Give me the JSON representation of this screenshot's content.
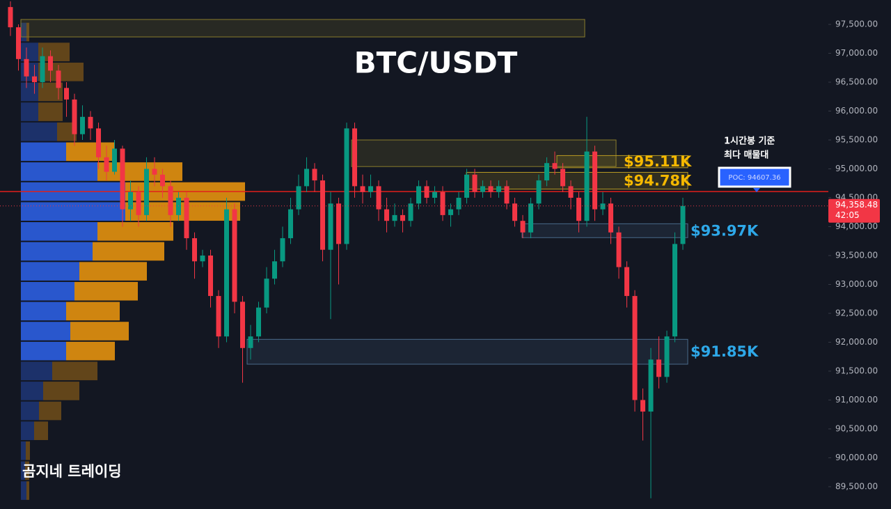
{
  "chart_data": {
    "type": "candlestick",
    "title": "BTC/USDT",
    "watermark": "곰지네 트레이딩",
    "up_color": "#089981",
    "down_color": "#f23645",
    "grid": false,
    "ylim": [
      89114,
      97922
    ],
    "yticks": [
      {
        "value": 89500,
        "label": "89,500.00"
      },
      {
        "value": 90000,
        "label": "90,000.00"
      },
      {
        "value": 90500,
        "label": "90,500.00"
      },
      {
        "value": 91000,
        "label": "91,000.00"
      },
      {
        "value": 91500,
        "label": "91,500.00"
      },
      {
        "value": 92000,
        "label": "92,000.00"
      },
      {
        "value": 92500,
        "label": "92,500.00"
      },
      {
        "value": 93000,
        "label": "93,000.00"
      },
      {
        "value": 93500,
        "label": "93,500.00"
      },
      {
        "value": 94000,
        "label": "94,000.00"
      },
      {
        "value": 94500,
        "label": "94,500.00"
      },
      {
        "value": 95000,
        "label": "95,000.00"
      },
      {
        "value": 95500,
        "label": "95,500.00"
      },
      {
        "value": 96000,
        "label": "96,000.00"
      },
      {
        "value": 96500,
        "label": "96,500.00"
      },
      {
        "value": 97000,
        "label": "97,000.00"
      },
      {
        "value": 97500,
        "label": "97,500.00"
      }
    ],
    "open": [
      97800,
      97450,
      96900,
      96600,
      96500,
      96950,
      96700,
      96400,
      96200,
      95600,
      95900,
      95700,
      95200,
      94950,
      95350,
      94300,
      94600,
      94200,
      95000,
      94900,
      94700,
      94200,
      94500,
      93800,
      93400,
      93500,
      92800,
      92100,
      94300,
      92700,
      91900,
      92100,
      92600,
      93100,
      93400,
      93800,
      94300,
      94700,
      95000,
      94800,
      93600,
      94400,
      93700,
      95700,
      94700,
      94600,
      94700,
      94300,
      94100,
      94200,
      94100,
      94400,
      94700,
      94500,
      94600,
      94200,
      94300,
      94500,
      94900,
      94600,
      94700,
      94600,
      94700,
      94400,
      94100,
      93900,
      94400,
      94800,
      95100,
      95000,
      94700,
      94500,
      94100,
      95300,
      94300,
      94400,
      93900,
      93300,
      92800,
      91000,
      90800,
      91700,
      91400,
      92100,
      93700
    ],
    "high": [
      97900,
      97500,
      97100,
      96800,
      97100,
      97050,
      96800,
      96500,
      96300,
      96100,
      96000,
      95800,
      95400,
      95500,
      95400,
      94800,
      94700,
      95200,
      95200,
      95000,
      94800,
      94600,
      94600,
      93900,
      93600,
      93600,
      92900,
      94500,
      94400,
      92800,
      92300,
      92700,
      93300,
      93600,
      94000,
      94500,
      94900,
      95200,
      95100,
      94900,
      94600,
      94500,
      95800,
      95800,
      94900,
      94900,
      94800,
      94500,
      94400,
      94300,
      94500,
      94800,
      94800,
      94700,
      94700,
      94400,
      94600,
      95000,
      95000,
      94800,
      94800,
      94800,
      94800,
      94500,
      94200,
      94500,
      94900,
      95200,
      95300,
      95100,
      94800,
      94600,
      95900,
      95400,
      94600,
      94500,
      94000,
      93400,
      92900,
      91200,
      91900,
      92100,
      92200,
      93900,
      94500
    ],
    "low": [
      97300,
      96700,
      96400,
      96300,
      96400,
      96500,
      96200,
      95900,
      95400,
      95500,
      95500,
      95000,
      94800,
      94900,
      94000,
      94100,
      94000,
      94100,
      94700,
      94500,
      94000,
      94100,
      93600,
      93100,
      93300,
      92600,
      91900,
      92000,
      92500,
      91300,
      91700,
      92000,
      92500,
      93000,
      93300,
      93700,
      94200,
      94600,
      94600,
      93400,
      92400,
      93000,
      93600,
      94500,
      94400,
      94500,
      94100,
      93900,
      94000,
      93900,
      94000,
      94300,
      94400,
      94400,
      94100,
      94000,
      94200,
      94400,
      94500,
      94500,
      94500,
      94500,
      94300,
      94000,
      93800,
      93800,
      94300,
      94700,
      94900,
      94600,
      94300,
      93900,
      94000,
      94100,
      94200,
      93700,
      93100,
      92600,
      90800,
      90300,
      89300,
      91200,
      91300,
      92000,
      93600
    ],
    "close": [
      97450,
      96900,
      96600,
      96500,
      96950,
      96700,
      96400,
      96200,
      95600,
      95900,
      95700,
      95200,
      94950,
      95350,
      94300,
      94600,
      94200,
      95000,
      94900,
      94700,
      94200,
      94500,
      93800,
      93400,
      93500,
      92800,
      92100,
      94300,
      92700,
      91900,
      92100,
      92600,
      93100,
      93400,
      93800,
      94300,
      94700,
      95000,
      94800,
      93600,
      94400,
      93700,
      95700,
      94700,
      94600,
      94700,
      94300,
      94100,
      94200,
      94100,
      94400,
      94700,
      94500,
      94600,
      94200,
      94300,
      94500,
      94900,
      94600,
      94700,
      94600,
      94700,
      94400,
      94100,
      93900,
      94400,
      94800,
      95100,
      95000,
      94700,
      94500,
      94100,
      95300,
      94300,
      94400,
      93900,
      93300,
      92800,
      91000,
      90800,
      91700,
      91400,
      92100,
      93700,
      94358.48
    ],
    "last_price": {
      "value": 94358.48,
      "label": "94,358.48"
    },
    "countdown": "42:05",
    "last_color": "#f23645",
    "poc": {
      "value": 94607.36,
      "label": "POC: 94607.36"
    },
    "poc_color": "#e0201b",
    "poc_note": [
      "1시간봉 기준",
      "최다 매물대"
    ],
    "zones": [
      {
        "low": 97283,
        "high": 97585,
        "color": "#8a7d2c"
      },
      {
        "low": 95040,
        "high": 95500,
        "color": "#8a7d2c"
      },
      {
        "low": 95020,
        "high": 95230,
        "color": "#b89a22",
        "label": "$95.11K",
        "label_color": "#f5b800"
      },
      {
        "low": 94650,
        "high": 94940,
        "color": "#b89a22",
        "label": "$94.78K",
        "label_color": "#f5b800"
      },
      {
        "low": 93810,
        "high": 94050,
        "color": "#4a6a8a",
        "label": "$93.97K",
        "label_color": "#2ea8e8"
      },
      {
        "low": 91620,
        "high": 92050,
        "color": "#4a6a8a",
        "label": "$91.85K",
        "label_color": "#2ea8e8"
      }
    ],
    "volume_profile": {
      "bins": [
        89260,
        89605,
        89950,
        90295,
        90640,
        90985,
        91330,
        91675,
        92020,
        92365,
        92710,
        93055,
        93400,
        93745,
        94090,
        94435,
        94780,
        95125,
        95470,
        95815,
        96160,
        96505,
        96850,
        97195,
        97540
      ],
      "buy": [
        8,
        6,
        7,
        19,
        26,
        32,
        45,
        65,
        71,
        65,
        77,
        84,
        103,
        110,
        150,
        150,
        110,
        65,
        52,
        25,
        25,
        25,
        25,
        8
      ],
      "sell": [
        4,
        6,
        6,
        20,
        32,
        52,
        65,
        70,
        84,
        77,
        91,
        97,
        103,
        109,
        165,
        172,
        122,
        70,
        28,
        35,
        35,
        65,
        45,
        4
      ],
      "buy_color": "#2a5bd7",
      "sell_color": "#d98b10"
    }
  }
}
